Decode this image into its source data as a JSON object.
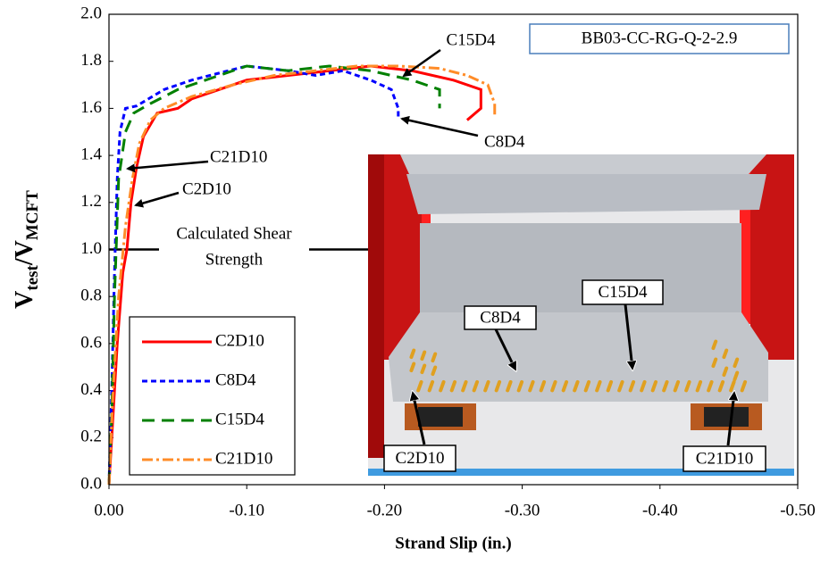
{
  "chart_data": {
    "type": "line",
    "x_label": "Strand Slip (in.)",
    "y_label": [
      "V",
      "test",
      "/V",
      "MCFT"
    ],
    "xlim": [
      0,
      -0.5
    ],
    "xticks": [
      {
        "value": 0,
        "label": "0.00"
      },
      {
        "value": -0.1,
        "label": "-0.10"
      },
      {
        "value": -0.2,
        "label": "-0.20"
      },
      {
        "value": -0.3,
        "label": "-0.30"
      },
      {
        "value": -0.4,
        "label": "-0.40"
      },
      {
        "value": -0.5,
        "label": "-0.50"
      }
    ],
    "ylim": [
      0,
      2
    ],
    "yticks": [
      {
        "value": 0,
        "label": "0.0"
      },
      {
        "value": 0.2,
        "label": "0.2"
      },
      {
        "value": 0.4,
        "label": "0.4"
      },
      {
        "value": 0.6,
        "label": "0.6"
      },
      {
        "value": 0.8,
        "label": "0.8"
      },
      {
        "value": 1,
        "label": "1.0"
      },
      {
        "value": 1.2,
        "label": "1.2"
      },
      {
        "value": 1.4,
        "label": "1.4"
      },
      {
        "value": 1.6,
        "label": "1.6"
      },
      {
        "value": 1.8,
        "label": "1.8"
      },
      {
        "value": 2,
        "label": "2.0"
      }
    ],
    "grid": false,
    "legend": "lower left",
    "reference_line": {
      "value": 1,
      "label": [
        "Calculated Shear",
        "Strength"
      ]
    },
    "box_label": "BB03-CC-RG-Q-2-2.9",
    "annotations": [
      "C15D4",
      "C8D4",
      "C21D10",
      "C2D10"
    ],
    "inset_labels": [
      "C15D4",
      "C8D4",
      "C2D10",
      "C21D10"
    ],
    "series": [
      {
        "name": "C2D10",
        "color": "#ff0000",
        "dash": "solid",
        "x": [
          0,
          -0.003,
          -0.006,
          -0.01,
          -0.013,
          -0.016,
          -0.02,
          -0.025,
          -0.035,
          -0.05,
          -0.06,
          -0.08,
          -0.1,
          -0.13,
          -0.16,
          -0.19,
          -0.22,
          -0.25,
          -0.27,
          -0.27,
          -0.26
        ],
        "values": [
          0,
          0.3,
          0.6,
          0.9,
          1.0,
          1.2,
          1.35,
          1.48,
          1.58,
          1.6,
          1.64,
          1.68,
          1.72,
          1.74,
          1.76,
          1.78,
          1.76,
          1.72,
          1.68,
          1.6,
          1.55
        ]
      },
      {
        "name": "C8D4",
        "color": "#0000ff",
        "dash": "dotted",
        "x": [
          0,
          -0.002,
          -0.004,
          -0.006,
          -0.008,
          -0.012,
          -0.02,
          -0.04,
          -0.06,
          -0.08,
          -0.1,
          -0.13,
          -0.15,
          -0.17,
          -0.19,
          -0.205,
          -0.21,
          -0.21
        ],
        "values": [
          0,
          0.4,
          0.9,
          1.3,
          1.5,
          1.6,
          1.61,
          1.68,
          1.72,
          1.75,
          1.78,
          1.76,
          1.74,
          1.76,
          1.72,
          1.68,
          1.6,
          1.56
        ]
      },
      {
        "name": "C15D4",
        "color": "#008000",
        "dash": "dashed",
        "x": [
          0,
          -0.002,
          -0.004,
          -0.007,
          -0.012,
          -0.018,
          -0.03,
          -0.05,
          -0.08,
          -0.1,
          -0.13,
          -0.16,
          -0.19,
          -0.22,
          -0.24,
          -0.24
        ],
        "values": [
          0,
          0.3,
          0.8,
          1.3,
          1.5,
          1.58,
          1.62,
          1.68,
          1.74,
          1.78,
          1.76,
          1.78,
          1.76,
          1.72,
          1.68,
          1.6
        ]
      },
      {
        "name": "C21D10",
        "color": "#ff8c28",
        "dash": "dashdot",
        "x": [
          0,
          -0.003,
          -0.007,
          -0.012,
          -0.017,
          -0.022,
          -0.03,
          -0.04,
          -0.06,
          -0.09,
          -0.12,
          -0.15,
          -0.18,
          -0.21,
          -0.24,
          -0.26,
          -0.275,
          -0.28,
          -0.28
        ],
        "values": [
          0,
          0.4,
          0.8,
          1.1,
          1.3,
          1.45,
          1.55,
          1.6,
          1.65,
          1.7,
          1.74,
          1.76,
          1.78,
          1.78,
          1.77,
          1.74,
          1.7,
          1.62,
          1.57
        ]
      }
    ]
  }
}
